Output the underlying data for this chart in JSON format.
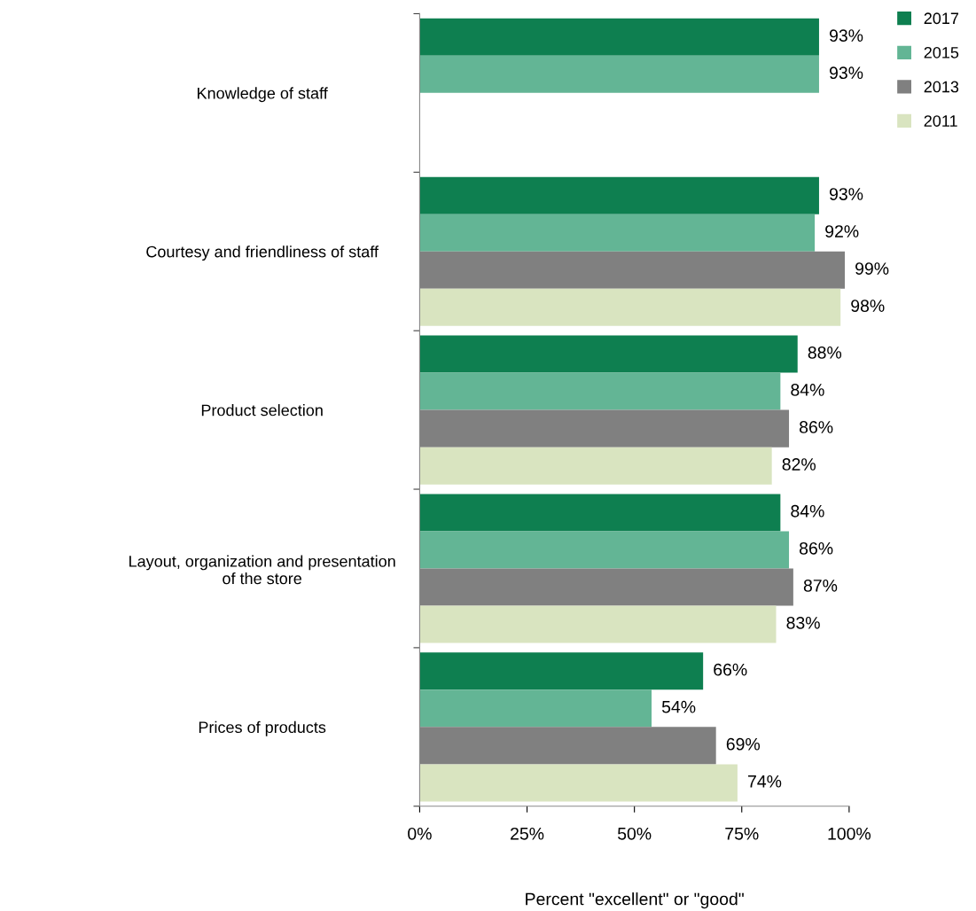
{
  "chart_data": {
    "type": "bar",
    "orientation": "horizontal",
    "xlabel": "Percent \"excellent\" or \"good\"",
    "categories": [
      "Knowledge of staff",
      "Courtesy and friendliness of staff",
      "Product selection",
      "Layout, organization and presentation\nof the store",
      "Prices of products"
    ],
    "series": [
      {
        "name": "2017",
        "color": "#0e7f50",
        "values": [
          93,
          93,
          88,
          84,
          66
        ],
        "value_labels": [
          "93%",
          "93%",
          "88%",
          "84%",
          "66%"
        ]
      },
      {
        "name": "2015",
        "color": "#63b595",
        "values": [
          93,
          92,
          84,
          86,
          54
        ],
        "value_labels": [
          "93%",
          "92%",
          "84%",
          "86%",
          "54%"
        ]
      },
      {
        "name": "2013",
        "color": "#808080",
        "values": [
          null,
          99,
          86,
          87,
          69
        ],
        "value_labels": [
          null,
          "99%",
          "86%",
          "87%",
          "69%"
        ]
      },
      {
        "name": "2011",
        "color": "#d9e4c0",
        "values": [
          null,
          98,
          82,
          83,
          74
        ],
        "value_labels": [
          null,
          "98%",
          "82%",
          "83%",
          "74%"
        ]
      }
    ],
    "xlim": [
      0,
      100
    ],
    "xticks": [
      {
        "value": 0,
        "label": "0%"
      },
      {
        "value": 25,
        "label": "25%"
      },
      {
        "value": 50,
        "label": "50%"
      },
      {
        "value": 75,
        "label": "75%"
      },
      {
        "value": 100,
        "label": "100%"
      }
    ],
    "grid": false,
    "legend": "right"
  }
}
